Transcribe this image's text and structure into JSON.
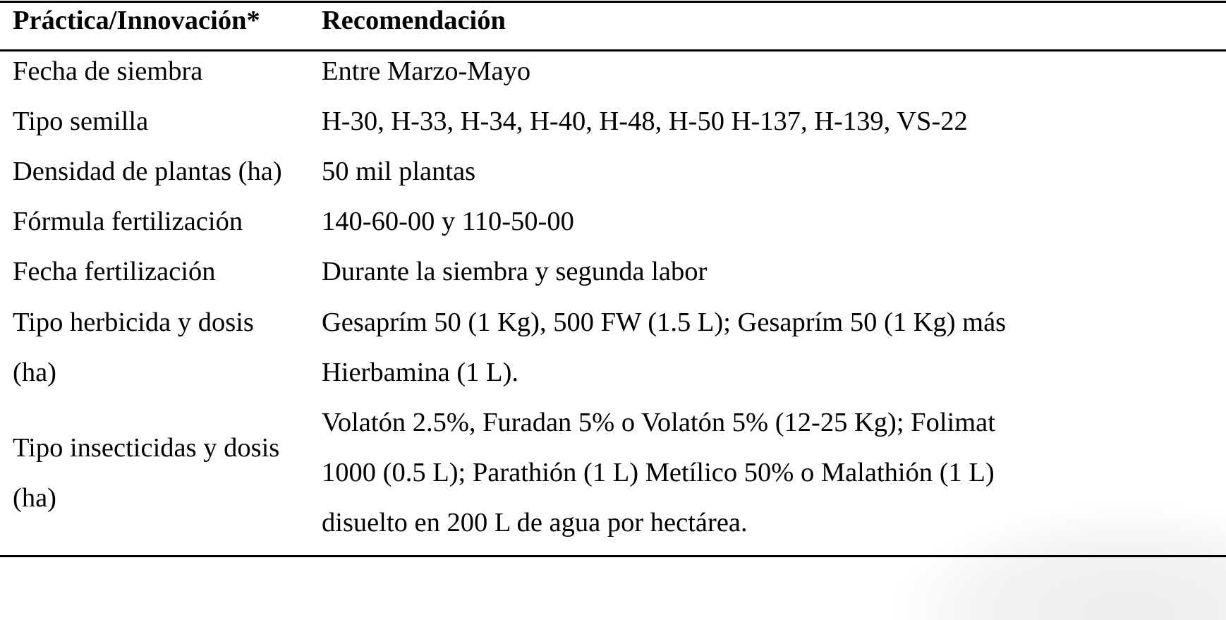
{
  "table": {
    "headers": [
      "Práctica/Innovación*",
      "Recomendación"
    ],
    "rows": [
      {
        "practice": [
          "Fecha de siembra"
        ],
        "recommendation": [
          "Entre Marzo-Mayo"
        ]
      },
      {
        "practice": [
          "Tipo semilla"
        ],
        "recommendation": [
          "H-30, H-33, H-34, H-40, H-48, H-50 H-137, H-139, VS-22"
        ]
      },
      {
        "practice": [
          "Densidad de plantas (ha)"
        ],
        "recommendation": [
          "50 mil plantas"
        ]
      },
      {
        "practice": [
          "Fórmula fertilización"
        ],
        "recommendation": [
          "140-60-00 y 110-50-00"
        ]
      },
      {
        "practice": [
          "Fecha fertilización"
        ],
        "recommendation": [
          "Durante la siembra y segunda labor"
        ]
      },
      {
        "practice": [
          "Tipo herbicida y dosis",
          "(ha)"
        ],
        "recommendation": [
          "Gesaprím 50 (1 Kg), 500 FW (1.5 L); Gesaprím 50 (1 Kg) más",
          "Hierbamina (1 L)."
        ]
      },
      {
        "practice": [
          "Tipo insecticidas y dosis",
          "(ha)"
        ],
        "recommendation": [
          "Volatón 2.5%, Furadan 5% o Volatón 5% (12-25 Kg); Folimat",
          "1000 (0.5 L); Parathión (1 L) Metílico 50% o Malathión (1 L)",
          "disuelto en 200 L de agua por hectárea."
        ]
      }
    ]
  }
}
